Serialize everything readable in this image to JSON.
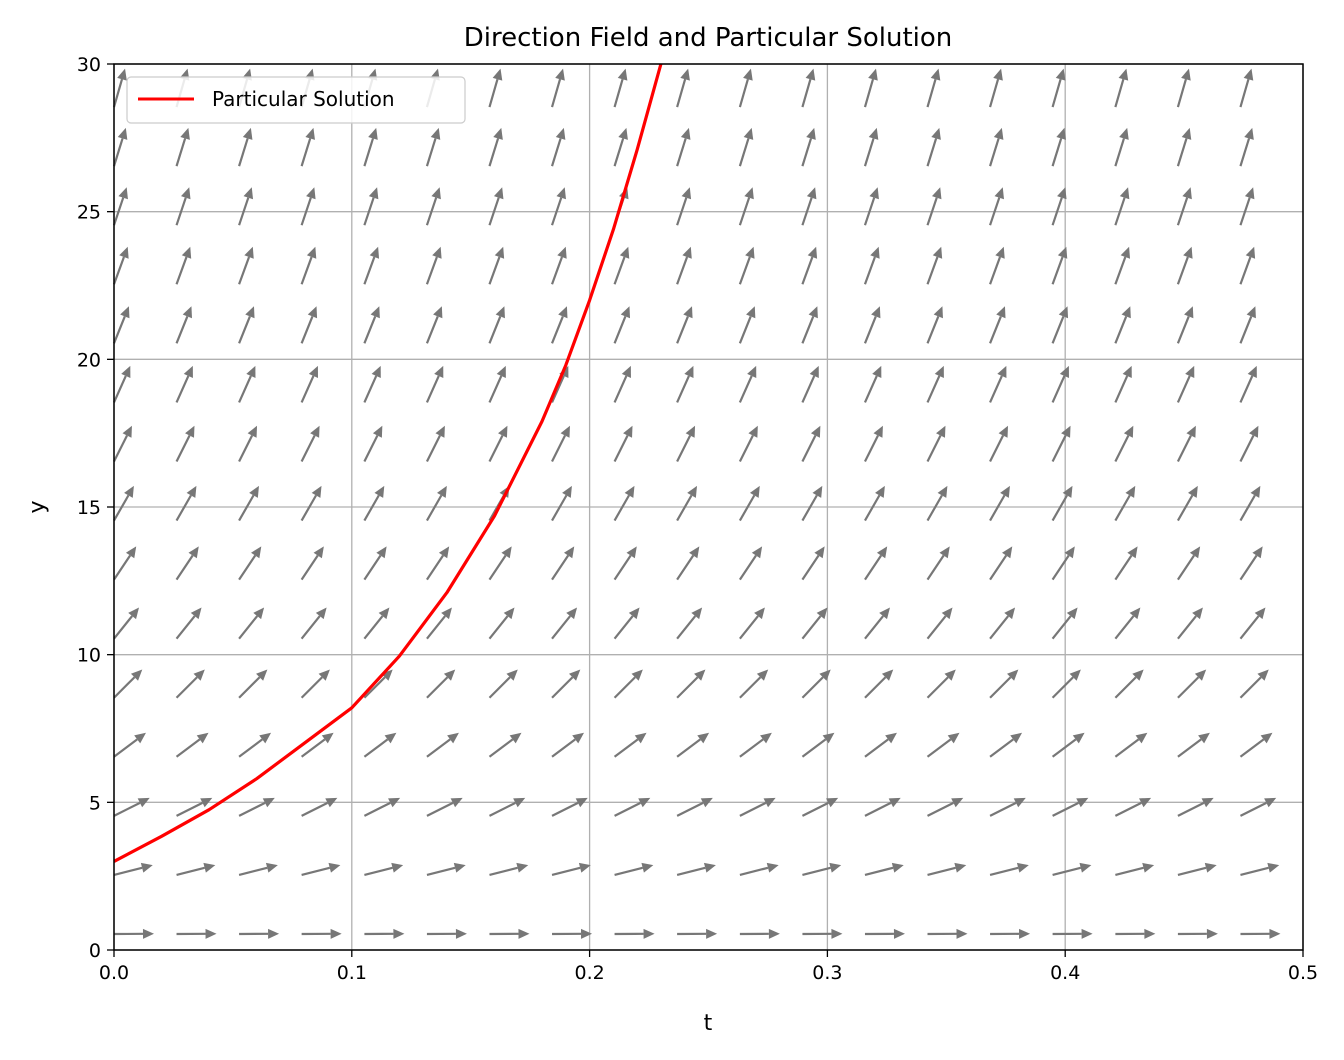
{
  "chart_data": {
    "type": "line",
    "title": "Direction Field and Particular Solution",
    "xlabel": "t",
    "ylabel": "y",
    "xlim": [
      0.0,
      0.5
    ],
    "ylim": [
      0,
      30
    ],
    "x_ticks": [
      "0.0",
      "0.1",
      "0.2",
      "0.3",
      "0.4",
      "0.5"
    ],
    "y_ticks": [
      "0",
      "5",
      "10",
      "15",
      "20",
      "25",
      "30"
    ],
    "grid": true,
    "legend": {
      "placement": "top-left",
      "entries": [
        "Particular Solution"
      ]
    },
    "series": [
      {
        "name": "Particular Solution",
        "color": "#ff0000",
        "x": [
          0.0,
          0.02,
          0.04,
          0.06,
          0.08,
          0.1,
          0.12,
          0.14,
          0.16,
          0.18,
          0.19,
          0.2,
          0.21,
          0.22,
          0.23
        ],
        "y": [
          3.0,
          3.85,
          4.75,
          5.8,
          7.0,
          8.2,
          9.95,
          12.1,
          14.7,
          17.9,
          19.8,
          22.0,
          24.4,
          27.1,
          30.0
        ]
      }
    ],
    "direction_field": {
      "color": "#777777",
      "t_grid": [
        0.0,
        0.0263,
        0.0526,
        0.0789,
        0.1053,
        0.1316,
        0.1579,
        0.1842,
        0.2105,
        0.2368,
        0.2632,
        0.2895,
        0.3158,
        0.3421,
        0.3684,
        0.3947,
        0.4211,
        0.4474,
        0.4737
      ],
      "y_grid": [
        0.0,
        2.0,
        4.0,
        6.0,
        8.0,
        10.0,
        12.0,
        14.0,
        16.0,
        18.0,
        20.0,
        22.0,
        24.0,
        26.0,
        28.0
      ]
    }
  }
}
